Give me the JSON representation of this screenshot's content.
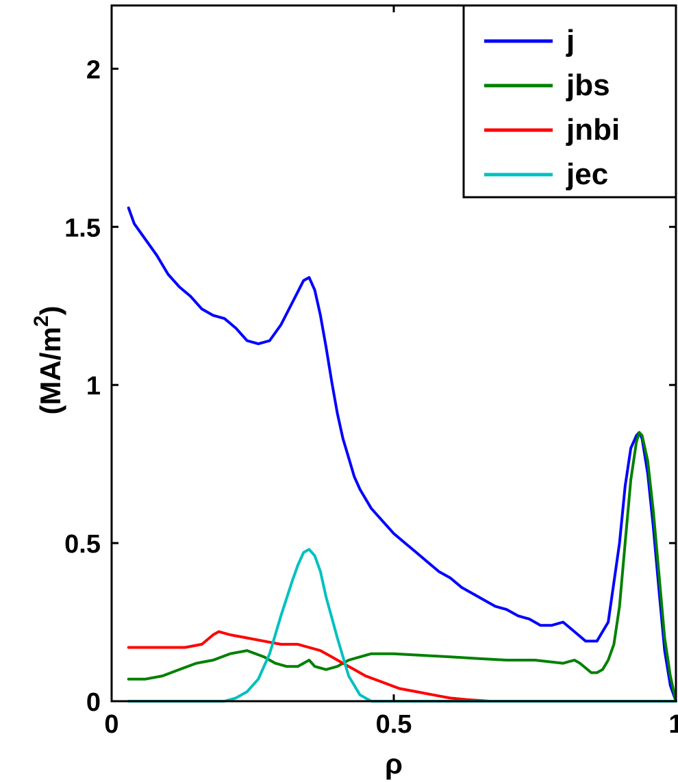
{
  "chart_data": {
    "type": "line",
    "title": "",
    "xlabel": "ρ",
    "ylabel": "(MA/m",
    "ylabel_sup": "2",
    "ylabel_close": ")",
    "xlim": [
      0,
      1
    ],
    "ylim": [
      0,
      2.2
    ],
    "xticks": [
      0,
      0.5,
      1
    ],
    "xtick_labels": [
      "0",
      "0.5",
      "1"
    ],
    "yticks": [
      0,
      0.5,
      1,
      1.5,
      2
    ],
    "ytick_labels": [
      "0",
      "0.5",
      "1",
      "1.5",
      "2"
    ],
    "grid": false,
    "legend_position": "top-right",
    "series": [
      {
        "name": "j",
        "color": "#0000ff",
        "x": [
          0.03,
          0.04,
          0.06,
          0.08,
          0.1,
          0.12,
          0.14,
          0.16,
          0.18,
          0.2,
          0.22,
          0.24,
          0.26,
          0.28,
          0.3,
          0.32,
          0.34,
          0.35,
          0.36,
          0.37,
          0.38,
          0.39,
          0.4,
          0.41,
          0.42,
          0.43,
          0.44,
          0.46,
          0.48,
          0.5,
          0.52,
          0.54,
          0.56,
          0.58,
          0.6,
          0.62,
          0.64,
          0.66,
          0.68,
          0.7,
          0.72,
          0.74,
          0.76,
          0.78,
          0.8,
          0.82,
          0.84,
          0.86,
          0.88,
          0.9,
          0.91,
          0.92,
          0.93,
          0.935,
          0.94,
          0.95,
          0.96,
          0.97,
          0.98,
          0.99,
          1.0
        ],
        "y": [
          1.56,
          1.51,
          1.46,
          1.41,
          1.35,
          1.31,
          1.28,
          1.24,
          1.22,
          1.21,
          1.18,
          1.14,
          1.13,
          1.14,
          1.19,
          1.26,
          1.33,
          1.34,
          1.3,
          1.22,
          1.12,
          1.01,
          0.91,
          0.83,
          0.77,
          0.71,
          0.67,
          0.61,
          0.57,
          0.53,
          0.5,
          0.47,
          0.44,
          0.41,
          0.39,
          0.36,
          0.34,
          0.32,
          0.3,
          0.29,
          0.27,
          0.26,
          0.24,
          0.24,
          0.25,
          0.22,
          0.19,
          0.19,
          0.25,
          0.5,
          0.68,
          0.8,
          0.84,
          0.85,
          0.83,
          0.72,
          0.55,
          0.35,
          0.16,
          0.05,
          0.0
        ]
      },
      {
        "name": "jbs",
        "color": "#008000",
        "x": [
          0.03,
          0.06,
          0.09,
          0.12,
          0.15,
          0.18,
          0.21,
          0.24,
          0.27,
          0.29,
          0.31,
          0.33,
          0.35,
          0.36,
          0.38,
          0.4,
          0.42,
          0.44,
          0.46,
          0.48,
          0.5,
          0.55,
          0.6,
          0.65,
          0.7,
          0.75,
          0.8,
          0.82,
          0.83,
          0.85,
          0.86,
          0.87,
          0.88,
          0.89,
          0.9,
          0.91,
          0.92,
          0.93,
          0.935,
          0.94,
          0.95,
          0.96,
          0.97,
          0.98,
          0.99,
          1.0
        ],
        "y": [
          0.07,
          0.07,
          0.08,
          0.1,
          0.12,
          0.13,
          0.15,
          0.16,
          0.14,
          0.12,
          0.11,
          0.11,
          0.13,
          0.11,
          0.1,
          0.11,
          0.13,
          0.14,
          0.15,
          0.15,
          0.15,
          0.145,
          0.14,
          0.135,
          0.13,
          0.13,
          0.12,
          0.13,
          0.12,
          0.09,
          0.09,
          0.1,
          0.13,
          0.18,
          0.3,
          0.5,
          0.7,
          0.82,
          0.85,
          0.84,
          0.76,
          0.6,
          0.4,
          0.2,
          0.08,
          0.0
        ]
      },
      {
        "name": "jnbi",
        "color": "#ff0000",
        "x": [
          0.03,
          0.06,
          0.1,
          0.13,
          0.16,
          0.18,
          0.19,
          0.21,
          0.24,
          0.27,
          0.3,
          0.33,
          0.35,
          0.37,
          0.39,
          0.41,
          0.43,
          0.45,
          0.48,
          0.51,
          0.54,
          0.57,
          0.6,
          0.63,
          0.67
        ],
        "y": [
          0.17,
          0.17,
          0.17,
          0.17,
          0.18,
          0.21,
          0.22,
          0.21,
          0.2,
          0.19,
          0.18,
          0.18,
          0.17,
          0.16,
          0.14,
          0.12,
          0.1,
          0.08,
          0.06,
          0.04,
          0.03,
          0.02,
          0.01,
          0.005,
          0.0
        ]
      },
      {
        "name": "jec",
        "color": "#00c0c0",
        "x": [
          0.03,
          0.1,
          0.2,
          0.22,
          0.24,
          0.26,
          0.28,
          0.3,
          0.32,
          0.33,
          0.34,
          0.35,
          0.36,
          0.37,
          0.38,
          0.4,
          0.42,
          0.44,
          0.46,
          0.5,
          0.6,
          0.7,
          0.8,
          0.9,
          1.0
        ],
        "y": [
          0,
          0,
          0,
          0.01,
          0.03,
          0.07,
          0.15,
          0.27,
          0.38,
          0.43,
          0.47,
          0.48,
          0.46,
          0.41,
          0.33,
          0.2,
          0.08,
          0.02,
          0,
          0,
          0,
          0,
          0,
          0,
          0
        ]
      }
    ]
  }
}
